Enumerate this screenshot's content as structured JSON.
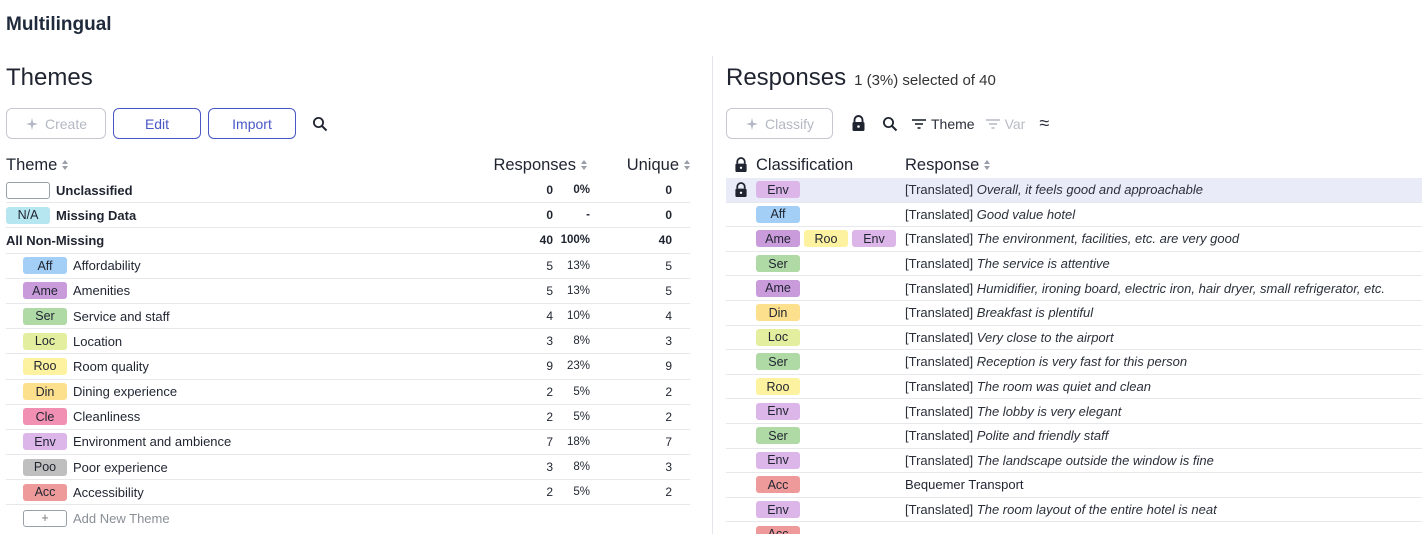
{
  "app_title": "Multilingual",
  "colors": {
    "Aff": "#a3cff7",
    "Ame": "#c99bdb",
    "Ser": "#afd9a5",
    "Loc": "#e4ee9f",
    "Roo": "#fdf2a0",
    "Din": "#fde08e",
    "Cle": "#f190b2",
    "Env": "#dcb6e8",
    "Poo": "#bfbfbf",
    "Acc": "#ee9a9a",
    "N/A": "#b6e6ef"
  },
  "themes": {
    "title": "Themes",
    "toolbar": {
      "create": "Create",
      "edit": "Edit",
      "import": "Import"
    },
    "headers": {
      "theme": "Theme",
      "responses": "Responses",
      "unique": "Unique"
    },
    "rows": [
      {
        "code": "",
        "name": "Unclassified",
        "responses": "0",
        "pct": "0%",
        "unique": "0",
        "bold": true,
        "kind": "empty"
      },
      {
        "code": "N/A",
        "name": "Missing Data",
        "responses": "0",
        "pct": "-",
        "unique": "0",
        "bold": true,
        "kind": "na"
      },
      {
        "code": "",
        "name": "All Non-Missing",
        "responses": "40",
        "pct": "100%",
        "unique": "40",
        "bold": true,
        "kind": "none"
      },
      {
        "code": "Aff",
        "name": "Affordability",
        "responses": "5",
        "pct": "13%",
        "unique": "5"
      },
      {
        "code": "Ame",
        "name": "Amenities",
        "responses": "5",
        "pct": "13%",
        "unique": "5"
      },
      {
        "code": "Ser",
        "name": "Service and staff",
        "responses": "4",
        "pct": "10%",
        "unique": "4"
      },
      {
        "code": "Loc",
        "name": "Location",
        "responses": "3",
        "pct": "8%",
        "unique": "3"
      },
      {
        "code": "Roo",
        "name": "Room quality",
        "responses": "9",
        "pct": "23%",
        "unique": "9"
      },
      {
        "code": "Din",
        "name": "Dining experience",
        "responses": "2",
        "pct": "5%",
        "unique": "2"
      },
      {
        "code": "Cle",
        "name": "Cleanliness",
        "responses": "2",
        "pct": "5%",
        "unique": "2"
      },
      {
        "code": "Env",
        "name": "Environment and ambience",
        "responses": "7",
        "pct": "18%",
        "unique": "7"
      },
      {
        "code": "Poo",
        "name": "Poor experience",
        "responses": "3",
        "pct": "8%",
        "unique": "3"
      },
      {
        "code": "Acc",
        "name": "Accessibility",
        "responses": "2",
        "pct": "5%",
        "unique": "2"
      }
    ],
    "add_new": {
      "icon": "+",
      "label": "Add New Theme"
    }
  },
  "responses": {
    "title": "Responses",
    "selection": "1 (3%) selected of 40",
    "toolbar": {
      "classify": "Classify",
      "theme": "Theme",
      "var": "Var",
      "approx": "≈"
    },
    "headers": {
      "classification": "Classification",
      "response": "Response"
    },
    "rows": [
      {
        "tags": [
          "Env"
        ],
        "prefix": "[Translated]",
        "text": "Overall, it feels good and approachable",
        "selected": true,
        "locked": true
      },
      {
        "tags": [
          "Aff"
        ],
        "prefix": "[Translated]",
        "text": "Good value hotel"
      },
      {
        "tags": [
          "Ame",
          "Roo",
          "Env"
        ],
        "prefix": "[Translated]",
        "text": "The environment, facilities, etc. are very good"
      },
      {
        "tags": [
          "Ser"
        ],
        "prefix": "[Translated]",
        "text": "The service is attentive"
      },
      {
        "tags": [
          "Ame"
        ],
        "prefix": "[Translated]",
        "text": "Humidifier, ironing board, electric iron, hair dryer, small refrigerator, etc."
      },
      {
        "tags": [
          "Din"
        ],
        "prefix": "[Translated]",
        "text": "Breakfast is plentiful"
      },
      {
        "tags": [
          "Loc"
        ],
        "prefix": "[Translated]",
        "text": "Very close to the airport"
      },
      {
        "tags": [
          "Ser"
        ],
        "prefix": "[Translated]",
        "text": "Reception is very fast for this person"
      },
      {
        "tags": [
          "Roo"
        ],
        "prefix": "[Translated]",
        "text": "The room was quiet and clean"
      },
      {
        "tags": [
          "Env"
        ],
        "prefix": "[Translated]",
        "text": "The lobby is very elegant"
      },
      {
        "tags": [
          "Ser"
        ],
        "prefix": "[Translated]",
        "text": "Polite and friendly staff"
      },
      {
        "tags": [
          "Env"
        ],
        "prefix": "[Translated]",
        "text": "The landscape outside the window is fine"
      },
      {
        "tags": [
          "Acc"
        ],
        "prefix": "",
        "text": "Bequemer Transport",
        "plain": true
      },
      {
        "tags": [
          "Env"
        ],
        "prefix": "[Translated]",
        "text": "The room layout of the entire hotel is neat"
      },
      {
        "tags": [
          "Acc"
        ],
        "prefix": "",
        "text": ""
      }
    ]
  }
}
